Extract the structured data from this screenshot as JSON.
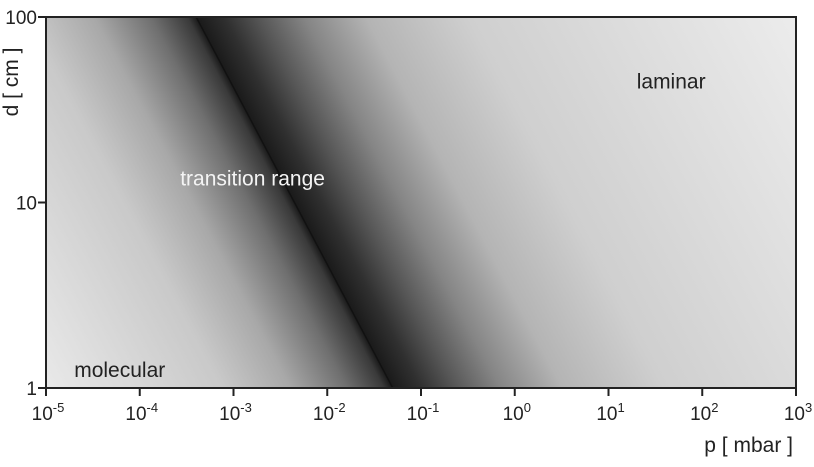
{
  "chart_data": {
    "type": "heatmap",
    "title": "",
    "xlabel": "p [ mbar ]",
    "ylabel": "d [ cm ]",
    "xscale": "log",
    "yscale": "log",
    "xlim": [
      1e-05,
      1000
    ],
    "ylim": [
      1,
      100
    ],
    "x_ticks": [
      {
        "base": "10",
        "exp": "-5",
        "value": 1e-05
      },
      {
        "base": "10",
        "exp": "-4",
        "value": 0.0001
      },
      {
        "base": "10",
        "exp": "-3",
        "value": 0.001
      },
      {
        "base": "10",
        "exp": "-2",
        "value": 0.01
      },
      {
        "base": "10",
        "exp": "-1",
        "value": 0.1
      },
      {
        "base": "10",
        "exp": "0",
        "value": 1
      },
      {
        "base": "10",
        "exp": "1",
        "value": 10
      },
      {
        "base": "10",
        "exp": "2",
        "value": 100
      },
      {
        "base": "10",
        "exp": "3",
        "value": 1000
      }
    ],
    "y_ticks": [
      {
        "label": "1",
        "value": 1
      },
      {
        "label": "10",
        "value": 10
      },
      {
        "label": "100",
        "value": 100
      }
    ],
    "regions": [
      {
        "name": "molecular",
        "label": "molecular",
        "p": 2e-05,
        "d": 1.25
      },
      {
        "name": "transition",
        "label": "transition range",
        "p": 0.00027,
        "d": 13.5
      },
      {
        "name": "laminar",
        "label": "laminar",
        "p": 20,
        "d": 45
      }
    ],
    "transition_center": [
      {
        "p": 0.0004,
        "d": 100
      },
      {
        "p": 0.05,
        "d": 1
      }
    ],
    "colors": {
      "darkest": "#1a1a1a",
      "mid": "#8c8c8c",
      "light": "#ececec",
      "axis": "#222222"
    }
  }
}
